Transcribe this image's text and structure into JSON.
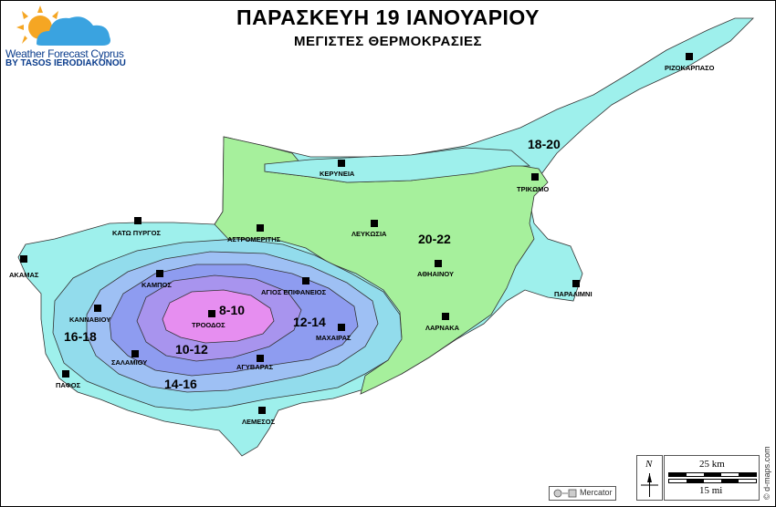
{
  "header": {
    "title": "ΠΑΡΑΣΚΕΥΗ 19 ΙΑΝΟΥΑΡΙΟΥ",
    "subtitle": "ΜΕΓΙΣΤΕΣ ΘΕΡΜΟΚΡΑΣΙΕΣ"
  },
  "logo": {
    "line1": "Weather Forecast Cyprus",
    "line2": "BY TASOS IERODIAKONOU",
    "icon": "sun-cloud-icon"
  },
  "zones": {
    "z8_10": "8-10",
    "z10_12": "10-12",
    "z12_14": "12-14",
    "z14_16": "14-16",
    "z16_18": "16-18",
    "z18_20": "18-20",
    "z20_22": "20-22"
  },
  "colors": {
    "z8_10": "#e68ef0",
    "z10_12": "#a894ee",
    "z12_14": "#8e9cf0",
    "z14_16": "#9ec0f4",
    "z16_18": "#92dcec",
    "z18_20": "#9ef0ec",
    "z20_22": "#a6f09c"
  },
  "cities": {
    "rizokarpaso": "ΡΙΖΟΚΑΡΠΑΣΟ",
    "kyrenia": "ΚΕΡΥΝΕΙΑ",
    "trikomo": "ΤΡΙΚΩΜΟ",
    "kato_pyrgos": "ΚΑΤΩ ΠΥΡΓΟΣ",
    "astromeritis": "ΑΣΤΡΟΜΕΡΙΤΗΣ",
    "lefkosia": "ΛΕΥΚΩΣΙΑ",
    "akamas": "ΑΚΑΜΑΣ",
    "kampos": "ΚΑΜΠΟΣ",
    "agios_epifanios": "ΑΓΙΟΣ ΕΠΙΦΑΝΕΙΟΣ",
    "athienou": "ΑΘΗΑΙΝΟΥ",
    "paralimni": "ΠΑΡΑΛΙΜΝΙ",
    "kannavioy": "ΚΑΝΝΑΒΙΟΥ",
    "troodos": "ΤΡΟΟΔΟΣ",
    "larnaka": "ΛΑΡΝΑΚΑ",
    "machairas": "ΜΑΧΑΙΡΑΣ",
    "salamiou": "ΣΑΛΑΜΙΟΥ",
    "agvaras": "ΑΓΥΒΑΡΑΣ",
    "pafos": "ΠΑΦΟΣ",
    "lemesos": "ΛΕΜΕΣΟΣ"
  },
  "legend": {
    "scale_km": "25 km",
    "scale_mi": "15 mi",
    "north": "N",
    "projection": "Mercator",
    "credit": "© d-maps.com"
  }
}
